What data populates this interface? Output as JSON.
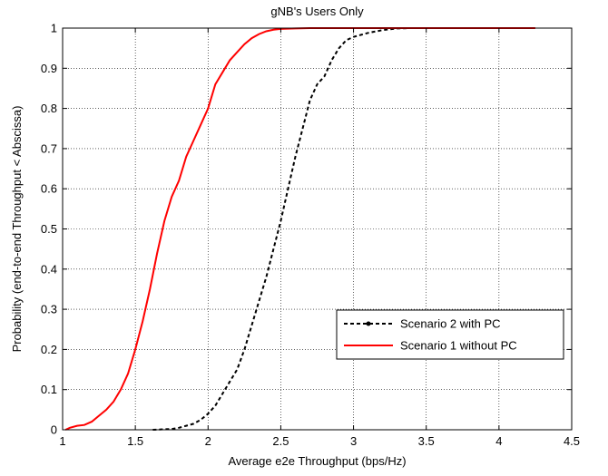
{
  "chart_data": {
    "type": "line",
    "title": "gNB's Users Only",
    "xlabel": "Average e2e Throughput (bps/Hz)",
    "ylabel": "Probability (end-to-end Throughput < Abscissa)",
    "xlim": [
      1,
      4.5
    ],
    "ylim": [
      0,
      1
    ],
    "xticks": [
      1,
      1.5,
      2,
      2.5,
      3,
      3.5,
      4,
      4.5
    ],
    "xtick_labels": [
      "1",
      "1.5",
      "2",
      "2.5",
      "3",
      "3.5",
      "4",
      "4.5"
    ],
    "yticks": [
      0,
      0.1,
      0.2,
      0.3,
      0.4,
      0.5,
      0.6,
      0.7,
      0.8,
      0.9,
      1
    ],
    "ytick_labels": [
      "0",
      "0.1",
      "0.2",
      "0.3",
      "0.4",
      "0.5",
      "0.6",
      "0.7",
      "0.8",
      "0.9",
      "1"
    ],
    "grid": true,
    "legend_position": "lower-right",
    "series": [
      {
        "name": "Scenario 2 with PC",
        "color": "#000000",
        "style": "dashed",
        "x": [
          1.62,
          1.75,
          1.8,
          1.85,
          1.9,
          1.95,
          2.0,
          2.05,
          2.1,
          2.15,
          2.2,
          2.25,
          2.3,
          2.35,
          2.4,
          2.45,
          2.5,
          2.55,
          2.6,
          2.65,
          2.7,
          2.75,
          2.8,
          2.85,
          2.9,
          2.95,
          3.0,
          3.1,
          3.2,
          3.3,
          3.4,
          3.5,
          4.25
        ],
        "y": [
          0.0,
          0.002,
          0.005,
          0.01,
          0.015,
          0.025,
          0.04,
          0.06,
          0.09,
          0.12,
          0.15,
          0.2,
          0.26,
          0.32,
          0.38,
          0.45,
          0.52,
          0.6,
          0.68,
          0.75,
          0.82,
          0.86,
          0.88,
          0.92,
          0.95,
          0.97,
          0.978,
          0.988,
          0.995,
          0.999,
          1.0,
          1.0,
          1.0
        ]
      },
      {
        "name": "Scenario 1 without PC",
        "color": "#ff0000",
        "style": "solid",
        "x": [
          1.02,
          1.05,
          1.1,
          1.15,
          1.2,
          1.25,
          1.3,
          1.35,
          1.4,
          1.45,
          1.5,
          1.55,
          1.6,
          1.65,
          1.7,
          1.75,
          1.8,
          1.85,
          1.9,
          1.95,
          2.0,
          2.05,
          2.1,
          2.15,
          2.2,
          2.25,
          2.3,
          2.35,
          2.4,
          2.45,
          2.5,
          2.6,
          2.7,
          2.8,
          3.0,
          3.5,
          4.25
        ],
        "y": [
          0.0,
          0.005,
          0.01,
          0.012,
          0.02,
          0.035,
          0.05,
          0.07,
          0.1,
          0.14,
          0.2,
          0.27,
          0.35,
          0.44,
          0.52,
          0.58,
          0.62,
          0.68,
          0.72,
          0.76,
          0.8,
          0.86,
          0.89,
          0.92,
          0.94,
          0.96,
          0.975,
          0.985,
          0.992,
          0.996,
          0.998,
          0.999,
          1.0,
          1.0,
          1.0,
          1.0,
          1.0
        ]
      }
    ]
  }
}
